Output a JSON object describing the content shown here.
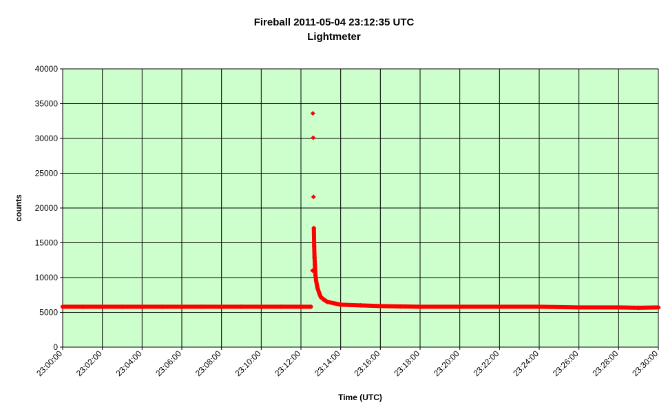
{
  "chart_data": {
    "type": "scatter",
    "title": "Fireball 2011-05-04  23:12:35 UTC",
    "subtitle": "Lightmeter",
    "xlabel": "Time (UTC)",
    "ylabel": "counts",
    "xlim": [
      "23:00:00",
      "23:30:00"
    ],
    "ylim": [
      0,
      40000
    ],
    "x_ticks": [
      "23:00:00",
      "23:02:00",
      "23:04:00",
      "23:06:00",
      "23:08:00",
      "23:10:00",
      "23:12:00",
      "23:14:00",
      "23:16:00",
      "23:18:00",
      "23:20:00",
      "23:22:00",
      "23:24:00",
      "23:26:00",
      "23:28:00",
      "23:30:00"
    ],
    "y_ticks": [
      0,
      5000,
      10000,
      15000,
      20000,
      25000,
      30000,
      35000,
      40000
    ],
    "grid": true,
    "legend": "none",
    "colors": {
      "plot_background": "#ccffcc",
      "marker": "#ff0000",
      "gridline": "#000000"
    },
    "series": [
      {
        "points": [
          [
            "23:00:00",
            5800
          ],
          [
            "23:01:00",
            5800
          ],
          [
            "23:02:00",
            5800
          ],
          [
            "23:03:00",
            5800
          ],
          [
            "23:04:00",
            5800
          ],
          [
            "23:05:00",
            5800
          ],
          [
            "23:06:00",
            5800
          ],
          [
            "23:07:00",
            5800
          ],
          [
            "23:08:00",
            5800
          ],
          [
            "23:09:00",
            5800
          ],
          [
            "23:10:00",
            5800
          ],
          [
            "23:11:00",
            5800
          ],
          [
            "23:12:00",
            5800
          ],
          [
            "23:12:30",
            5800
          ],
          [
            "23:12:35",
            11000
          ],
          [
            "23:12:36",
            33600
          ],
          [
            "23:12:37",
            30100
          ],
          [
            "23:12:38",
            21600
          ],
          [
            "23:12:39",
            17100
          ],
          [
            "23:12:40",
            14500
          ],
          [
            "23:12:41",
            12900
          ],
          [
            "23:12:42",
            11900
          ],
          [
            "23:12:43",
            11000
          ],
          [
            "23:12:44",
            10300
          ],
          [
            "23:12:46",
            9500
          ],
          [
            "23:12:50",
            8500
          ],
          [
            "23:12:55",
            7800
          ],
          [
            "23:13:00",
            7200
          ],
          [
            "23:13:10",
            6800
          ],
          [
            "23:13:20",
            6500
          ],
          [
            "23:13:40",
            6300
          ],
          [
            "23:14:00",
            6100
          ],
          [
            "23:15:00",
            6000
          ],
          [
            "23:16:00",
            5900
          ],
          [
            "23:17:00",
            5850
          ],
          [
            "23:18:00",
            5800
          ],
          [
            "23:20:00",
            5800
          ],
          [
            "23:22:00",
            5800
          ],
          [
            "23:24:00",
            5800
          ],
          [
            "23:26:00",
            5700
          ],
          [
            "23:28:00",
            5700
          ],
          [
            "23:29:00",
            5650
          ],
          [
            "23:30:00",
            5700
          ]
        ]
      }
    ]
  }
}
